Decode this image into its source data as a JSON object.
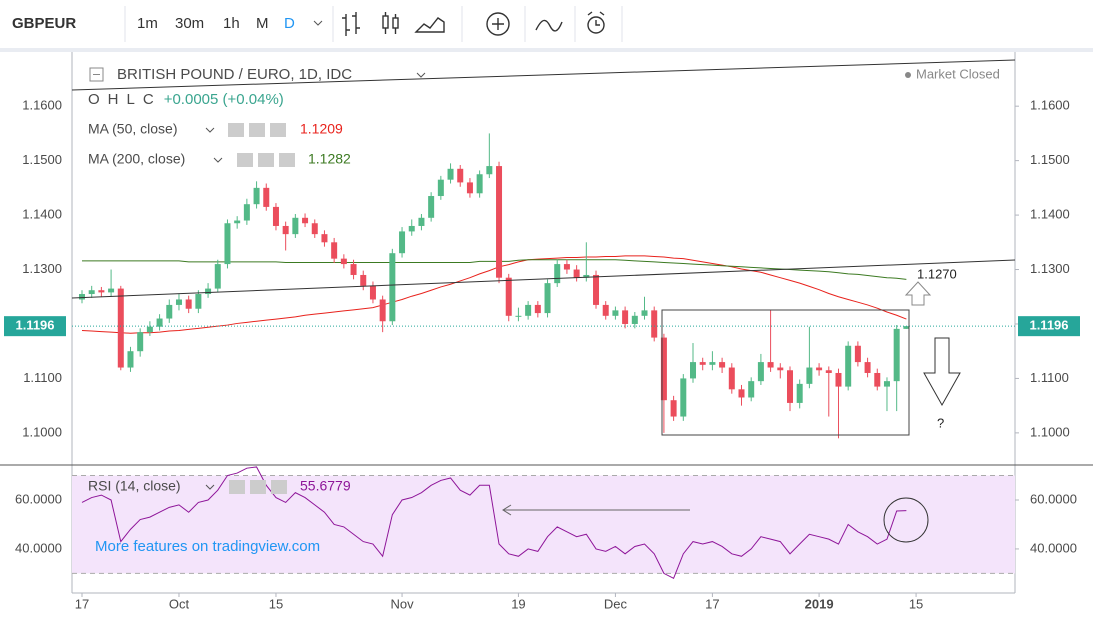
{
  "toolbar": {
    "symbol": "GBPEUR",
    "intervals": [
      "1m",
      "30m",
      "1h",
      "M",
      "D"
    ]
  },
  "chart_data": [
    {
      "type": "candlestick",
      "title": "BRITISH POUND / EURO, 1D, IDC",
      "status": "Market Closed",
      "legend": {
        "labels": [
          "O",
          "H",
          "L",
          "C"
        ],
        "change": "+0.0005 (+0.04%)"
      },
      "up_color": "#53b987",
      "down_color": "#eb4d5c",
      "ohlc": [
        [
          1.1245,
          1.1262,
          1.1238,
          1.1255
        ],
        [
          1.1255,
          1.127,
          1.1248,
          1.1262
        ],
        [
          1.1262,
          1.1268,
          1.125,
          1.1258
        ],
        [
          1.1258,
          1.13,
          1.125,
          1.1265
        ],
        [
          1.1265,
          1.127,
          1.1115,
          1.112
        ],
        [
          1.112,
          1.1158,
          1.1112,
          1.115
        ],
        [
          1.115,
          1.1192,
          1.114,
          1.1185
        ],
        [
          1.1185,
          1.1205,
          1.1178,
          1.1195
        ],
        [
          1.1195,
          1.1218,
          1.1188,
          1.121
        ],
        [
          1.121,
          1.1245,
          1.1202,
          1.1235
        ],
        [
          1.1235,
          1.1255,
          1.1225,
          1.1245
        ],
        [
          1.1245,
          1.1252,
          1.122,
          1.1228
        ],
        [
          1.1228,
          1.1262,
          1.122,
          1.1255
        ],
        [
          1.1255,
          1.1275,
          1.1248,
          1.1265
        ],
        [
          1.1265,
          1.1318,
          1.1258,
          1.131
        ],
        [
          1.131,
          1.1392,
          1.1302,
          1.1385
        ],
        [
          1.1385,
          1.1398,
          1.1375,
          1.139
        ],
        [
          1.139,
          1.143,
          1.1382,
          1.142
        ],
        [
          1.142,
          1.1462,
          1.1412,
          1.145
        ],
        [
          1.145,
          1.1458,
          1.1408,
          1.1415
        ],
        [
          1.1415,
          1.1422,
          1.1372,
          1.138
        ],
        [
          1.138,
          1.1388,
          1.1335,
          1.1365
        ],
        [
          1.1365,
          1.1402,
          1.1358,
          1.1395
        ],
        [
          1.1395,
          1.1403,
          1.1378,
          1.1385
        ],
        [
          1.1385,
          1.1392,
          1.1358,
          1.1365
        ],
        [
          1.1365,
          1.1372,
          1.1342,
          1.135
        ],
        [
          1.135,
          1.1358,
          1.1312,
          1.132
        ],
        [
          1.132,
          1.1328,
          1.1302,
          1.131
        ],
        [
          1.131,
          1.1318,
          1.1282,
          1.129
        ],
        [
          1.129,
          1.1298,
          1.1262,
          1.127
        ],
        [
          1.127,
          1.1278,
          1.1238,
          1.1245
        ],
        [
          1.1245,
          1.1252,
          1.1185,
          1.1205
        ],
        [
          1.1205,
          1.1338,
          1.1198,
          1.133
        ],
        [
          1.133,
          1.1378,
          1.1322,
          1.137
        ],
        [
          1.137,
          1.1392,
          1.1362,
          1.138
        ],
        [
          1.138,
          1.1402,
          1.1372,
          1.1395
        ],
        [
          1.1395,
          1.1442,
          1.1388,
          1.1435
        ],
        [
          1.1435,
          1.1472,
          1.1428,
          1.1465
        ],
        [
          1.1465,
          1.1495,
          1.1458,
          1.1485
        ],
        [
          1.1485,
          1.1492,
          1.1452,
          1.146
        ],
        [
          1.146,
          1.1468,
          1.1432,
          1.144
        ],
        [
          1.144,
          1.1482,
          1.1432,
          1.1475
        ],
        [
          1.1475,
          1.155,
          1.1468,
          1.149
        ],
        [
          1.149,
          1.1498,
          1.1275,
          1.1285
        ],
        [
          1.1285,
          1.1292,
          1.1205,
          1.1215
        ],
        [
          1.1215,
          1.123,
          1.1205,
          1.1215
        ],
        [
          1.1215,
          1.1242,
          1.1208,
          1.1235
        ],
        [
          1.1235,
          1.1242,
          1.1212,
          1.122
        ],
        [
          1.122,
          1.1282,
          1.1212,
          1.1275
        ],
        [
          1.1275,
          1.1318,
          1.1268,
          1.131
        ],
        [
          1.131,
          1.1318,
          1.1292,
          1.13
        ],
        [
          1.13,
          1.1308,
          1.1278,
          1.1285
        ],
        [
          1.1285,
          1.135,
          1.1278,
          1.129
        ],
        [
          1.129,
          1.1298,
          1.1228,
          1.1235
        ],
        [
          1.1235,
          1.1242,
          1.1208,
          1.1215
        ],
        [
          1.1215,
          1.1232,
          1.1208,
          1.1225
        ],
        [
          1.1225,
          1.1232,
          1.1192,
          1.12
        ],
        [
          1.12,
          1.1222,
          1.1192,
          1.1215
        ],
        [
          1.1215,
          1.125,
          1.1208,
          1.1225
        ],
        [
          1.1225,
          1.1232,
          1.1168,
          1.1175
        ],
        [
          1.1175,
          1.1182,
          1.1,
          1.106
        ],
        [
          1.106,
          1.1068,
          1.1022,
          1.103
        ],
        [
          1.103,
          1.1108,
          1.1022,
          1.11
        ],
        [
          1.11,
          1.1165,
          1.1092,
          1.113
        ],
        [
          1.113,
          1.1138,
          1.1115,
          1.1125
        ],
        [
          1.1125,
          1.115,
          1.1115,
          1.113
        ],
        [
          1.113,
          1.1138,
          1.111,
          1.112
        ],
        [
          1.112,
          1.1128,
          1.1072,
          1.108
        ],
        [
          1.108,
          1.1088,
          1.105,
          1.1065
        ],
        [
          1.1065,
          1.1102,
          1.1058,
          1.1095
        ],
        [
          1.1095,
          1.1145,
          1.1088,
          1.113
        ],
        [
          1.113,
          1.1225,
          1.1112,
          1.112
        ],
        [
          1.112,
          1.1128,
          1.11,
          1.1115
        ],
        [
          1.1115,
          1.1122,
          1.104,
          1.1055
        ],
        [
          1.1055,
          1.1098,
          1.1045,
          1.109
        ],
        [
          1.109,
          1.1195,
          1.1082,
          1.112
        ],
        [
          1.112,
          1.1128,
          1.1105,
          1.1115
        ],
        [
          1.1115,
          1.1122,
          1.103,
          1.111
        ],
        [
          1.111,
          1.1118,
          1.099,
          1.1085
        ],
        [
          1.1085,
          1.1168,
          1.1078,
          1.116
        ],
        [
          1.116,
          1.1168,
          1.1122,
          1.113
        ],
        [
          1.113,
          1.1138,
          1.1102,
          1.111
        ],
        [
          1.111,
          1.1118,
          1.1078,
          1.1085
        ],
        [
          1.1085,
          1.1102,
          1.104,
          1.1095
        ],
        [
          1.1095,
          1.1198,
          1.104,
          1.1191
        ],
        [
          1.1191,
          1.1196,
          1.1191,
          1.1196
        ]
      ],
      "series": [
        {
          "name": "MA (50, close)",
          "color": "#e8221c",
          "values": [
            1.1188,
            1.1187,
            1.1186,
            1.1185,
            1.1184,
            1.1183,
            1.1184,
            1.1184,
            1.1185,
            1.1187,
            1.1188,
            1.119,
            1.1192,
            1.1194,
            1.1196,
            1.1198,
            1.1201,
            1.1203,
            1.1205,
            1.1207,
            1.1209,
            1.1211,
            1.1213,
            1.1216,
            1.1218,
            1.122,
            1.1222,
            1.1224,
            1.1226,
            1.1228,
            1.123,
            1.1235,
            1.124,
            1.1245,
            1.1251,
            1.1256,
            1.1262,
            1.1268,
            1.1273,
            1.1279,
            1.1285,
            1.1292,
            1.1298,
            1.1305,
            1.1309,
            1.1314,
            1.1318,
            1.1319,
            1.132,
            1.1321,
            1.1322,
            1.1322,
            1.1323,
            1.1323,
            1.1324,
            1.1324,
            1.1325,
            1.1325,
            1.1325,
            1.1324,
            1.1323,
            1.1321,
            1.132,
            1.1317,
            1.1314,
            1.1311,
            1.1308,
            1.1305,
            1.1301,
            1.1298,
            1.1295,
            1.129,
            1.1285,
            1.128,
            1.1275,
            1.1269,
            1.1263,
            1.1256,
            1.125,
            1.1245,
            1.124,
            1.1235,
            1.1229,
            1.1222,
            1.1216,
            1.1209
          ]
        },
        {
          "name": "MA (200, close)",
          "color": "#3c7a22",
          "values": [
            1.1316,
            1.1316,
            1.1316,
            1.1316,
            1.1316,
            1.1316,
            1.1316,
            1.1316,
            1.1316,
            1.1316,
            1.1316,
            1.1314,
            1.1314,
            1.1314,
            1.1314,
            1.1314,
            1.1314,
            1.1314,
            1.1314,
            1.1314,
            1.1314,
            1.1313,
            1.1313,
            1.1313,
            1.1313,
            1.1313,
            1.1313,
            1.1313,
            1.1313,
            1.1313,
            1.1313,
            1.1313,
            1.1313,
            1.1313,
            1.1313,
            1.1313,
            1.1313,
            1.1313,
            1.1313,
            1.1313,
            1.1313,
            1.1315,
            1.1315,
            1.1315,
            1.1315,
            1.1317,
            1.1318,
            1.1318,
            1.1318,
            1.1318,
            1.1318,
            1.1318,
            1.1318,
            1.1318,
            1.1318,
            1.1318,
            1.1317,
            1.1316,
            1.1315,
            1.1314,
            1.1313,
            1.1312,
            1.1311,
            1.131,
            1.1309,
            1.1308,
            1.1307,
            1.1306,
            1.1305,
            1.1304,
            1.1303,
            1.1302,
            1.1301,
            1.13,
            1.1299,
            1.1298,
            1.1297,
            1.1296,
            1.1294,
            1.1292,
            1.1291,
            1.1289,
            1.1287,
            1.1285,
            1.1284,
            1.1282
          ]
        }
      ],
      "ylim": [
        1.0941,
        1.1694
      ],
      "yticks": [
        {
          "value": 1.1,
          "label": "1.1000"
        },
        {
          "value": 1.11,
          "label": "1.1100"
        },
        {
          "value": 1.12,
          "label": "1.1200"
        },
        {
          "value": 1.13,
          "label": "1.1300"
        },
        {
          "value": 1.14,
          "label": "1.1400"
        },
        {
          "value": 1.15,
          "label": "1.1500"
        },
        {
          "value": 1.16,
          "label": "1.1600"
        }
      ],
      "xlim": [
        -1.03,
        96.2
      ],
      "xticks": [
        {
          "value": 0,
          "label": "17"
        },
        {
          "value": 10,
          "label": "Oct"
        },
        {
          "value": 20,
          "label": "15"
        },
        {
          "value": 33,
          "label": "Nov"
        },
        {
          "value": 45,
          "label": "19"
        },
        {
          "value": 55,
          "label": "Dec"
        },
        {
          "value": 65,
          "label": "17"
        },
        {
          "value": 76,
          "label": "2019"
        },
        {
          "value": 86,
          "label": "15"
        }
      ],
      "annotations": [
        "1.1270",
        "?"
      ]
    },
    {
      "type": "line",
      "series": [
        {
          "name": "RSI (14, close)",
          "color": "#8e1599",
          "values": [
            59,
            61,
            62,
            60,
            43,
            48,
            52,
            53,
            55,
            57,
            58,
            55,
            59,
            60,
            64,
            70,
            71,
            73,
            73.5,
            66,
            61,
            59,
            63,
            61,
            58,
            55,
            50,
            49,
            46,
            43,
            42,
            37,
            54,
            60,
            61,
            63,
            66,
            68,
            69,
            64,
            62,
            66,
            66,
            42,
            38,
            37,
            40,
            39,
            45,
            49,
            47,
            45,
            46,
            40,
            39,
            41,
            38,
            41,
            42,
            38,
            30,
            28,
            38,
            43,
            42,
            43,
            41,
            38,
            37,
            40,
            45,
            44,
            43,
            38,
            42,
            46,
            45,
            44,
            42,
            50,
            47,
            45,
            42,
            44,
            55.5,
            55.6779
          ]
        }
      ],
      "ylim": [
        22.4,
        74.3
      ],
      "yticks": [
        {
          "value": 40,
          "label": "40.0000"
        },
        {
          "value": 60,
          "label": "60.0000"
        }
      ],
      "levels": [
        70,
        30
      ],
      "watermark": "More features on tradingview.com"
    }
  ]
}
